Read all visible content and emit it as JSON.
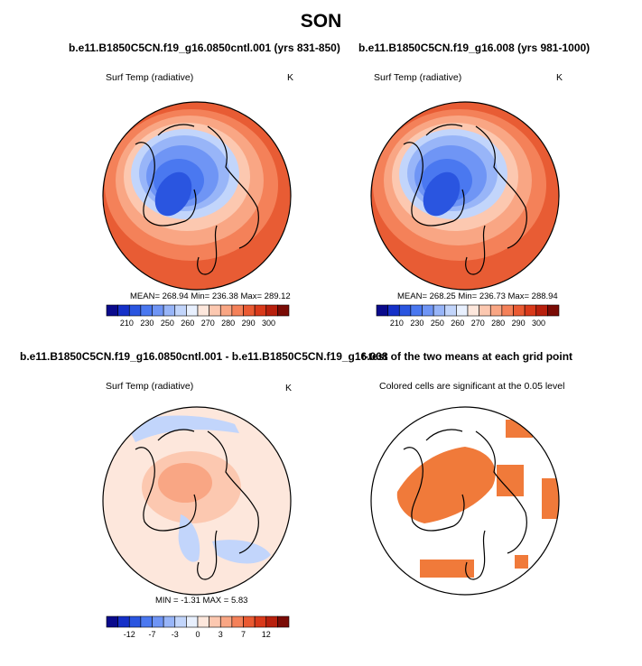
{
  "title": "SON",
  "panels": [
    {
      "title": "b.e11.B1850C5CN.f19_g16.0850cntl.001 (yrs 831-850)",
      "left_label": "Surf Temp (radiative)",
      "unit": "K",
      "stats": "MEAN= 268.94  Min= 236.38  Max= 289.12"
    },
    {
      "title": "b.e11.B1850C5CN.f19_g16.008 (yrs 981-1000)",
      "left_label": "Surf Temp (radiative)",
      "unit": "K",
      "stats": "MEAN= 268.25  Min= 236.73  Max= 288.94"
    },
    {
      "title": "b.e11.B1850C5CN.f19_g16.0850cntl.001 - b.e11.B1850C5CN.f19_g16.008",
      "left_label": "Surf Temp (radiative)",
      "unit": "K",
      "stats": "MIN =  -1.31 MAX =   5.83"
    },
    {
      "title": "t-test of the two means at each grid point",
      "left_label": "Colored cells are significant at the 0.05 level"
    }
  ],
  "chart_data": [
    {
      "type": "heatmap",
      "title": "b.e11.B1850C5CN.f19_g16.0850cntl.001 (yrs 831-850)",
      "variable": "Surf Temp (radiative)",
      "units": "K",
      "stats": {
        "mean": 268.94,
        "min": 236.38,
        "max": 289.12
      },
      "colorbar": {
        "tick_labels": [
          "210",
          "230",
          "250",
          "260",
          "270",
          "280",
          "290",
          "300"
        ],
        "colors": [
          "#0a0a8c",
          "#1530c8",
          "#2a55e0",
          "#4a78f0",
          "#6f95f5",
          "#98b5f8",
          "#c2d5fb",
          "#e8f0fe",
          "#fde7dc",
          "#fcc8b0",
          "#f9a684",
          "#f48159",
          "#ea5a32",
          "#d9391a",
          "#b8200d",
          "#7a0b05"
        ]
      }
    },
    {
      "type": "heatmap",
      "title": "b.e11.B1850C5CN.f19_g16.008 (yrs 981-1000)",
      "variable": "Surf Temp (radiative)",
      "units": "K",
      "stats": {
        "mean": 268.25,
        "min": 236.73,
        "max": 288.94
      },
      "colorbar": {
        "tick_labels": [
          "210",
          "230",
          "250",
          "260",
          "270",
          "280",
          "290",
          "300"
        ],
        "colors": [
          "#0a0a8c",
          "#1530c8",
          "#2a55e0",
          "#4a78f0",
          "#6f95f5",
          "#98b5f8",
          "#c2d5fb",
          "#e8f0fe",
          "#fde7dc",
          "#fcc8b0",
          "#f9a684",
          "#f48159",
          "#ea5a32",
          "#d9391a",
          "#b8200d",
          "#7a0b05"
        ]
      }
    },
    {
      "type": "heatmap",
      "title": "b.e11.B1850C5CN.f19_g16.0850cntl.001 - b.e11.B1850C5CN.f19_g16.008",
      "variable": "Surf Temp (radiative)",
      "units": "K",
      "stats": {
        "min": -1.31,
        "max": 5.83
      },
      "colorbar": {
        "tick_labels": [
          "-12",
          "-7",
          "-3",
          "0",
          "3",
          "7",
          "12"
        ],
        "colors": [
          "#0a0a8c",
          "#1530c8",
          "#2a55e0",
          "#4a78f0",
          "#6f95f5",
          "#98b5f8",
          "#c2d5fb",
          "#e8f0fe",
          "#fde7dc",
          "#fcc8b0",
          "#f9a684",
          "#f48159",
          "#ea5a32",
          "#d9391a",
          "#b8200d",
          "#7a0b05"
        ]
      }
    },
    {
      "type": "heatmap",
      "title": "t-test of the two means at each grid point",
      "subtitle": "Colored cells are significant at the 0.05 level",
      "colors": {
        "significant": "#f07a3a"
      }
    }
  ]
}
